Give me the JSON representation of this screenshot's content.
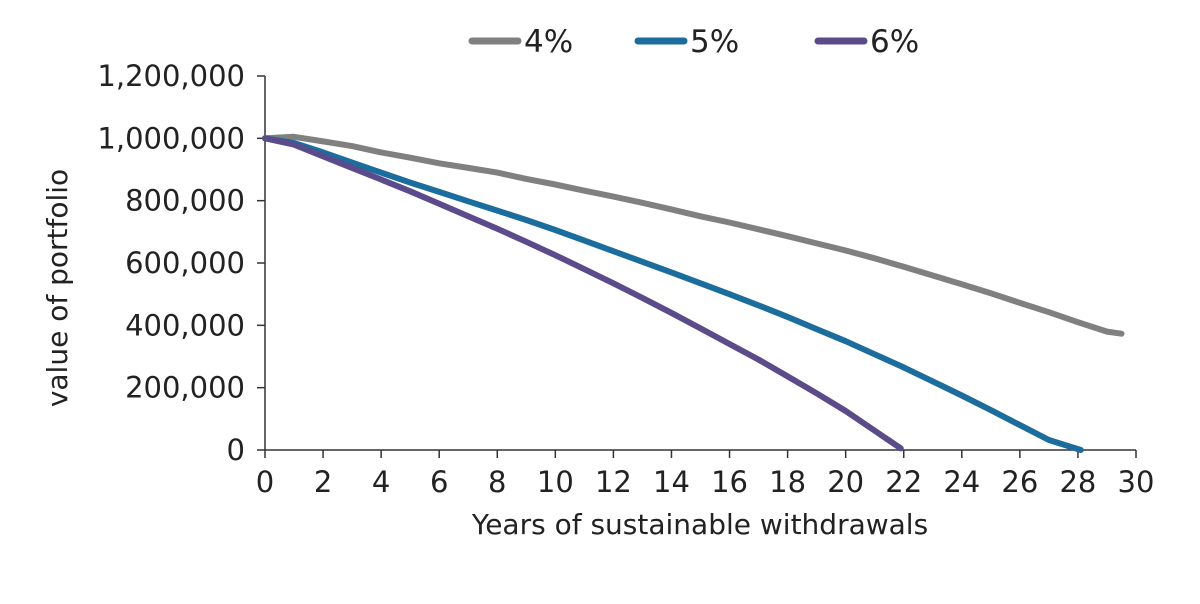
{
  "chart_data": {
    "type": "line",
    "xlabel": "Years of sustainable withdrawals",
    "ylabel": "value of portfolio",
    "xlim": [
      0,
      30
    ],
    "ylim": [
      0,
      1200000
    ],
    "x_ticks": [
      "0",
      "2",
      "4",
      "6",
      "8",
      "10",
      "12",
      "14",
      "16",
      "18",
      "20",
      "22",
      "24",
      "26",
      "28",
      "30"
    ],
    "y_ticks": [
      "1,200,000",
      "1,000,000",
      "800,000",
      "600,000",
      "400,000",
      "200,000",
      "0"
    ],
    "grid": false,
    "legend_position": "top",
    "series": [
      {
        "name": "4%",
        "color": "#808080",
        "x": [
          0,
          1,
          2,
          3,
          4,
          5,
          6,
          7,
          8,
          9,
          10,
          11,
          12,
          13,
          14,
          15,
          16,
          17,
          18,
          19,
          20,
          21,
          22,
          23,
          24,
          25,
          26,
          27,
          28,
          29,
          29.5
        ],
        "y": [
          1000000,
          1005000,
          990000,
          975000,
          955000,
          938000,
          920000,
          905000,
          890000,
          870000,
          852000,
          832000,
          813000,
          793000,
          772000,
          750000,
          730000,
          708000,
          686000,
          663000,
          640000,
          615000,
          588000,
          560000,
          532000,
          503000,
          472000,
          442000,
          410000,
          380000,
          373000
        ]
      },
      {
        "name": "5%",
        "color": "#1a6d9c",
        "x": [
          0,
          1,
          2,
          3,
          4,
          5,
          6,
          7,
          8,
          9,
          10,
          11,
          12,
          13,
          14,
          15,
          16,
          17,
          18,
          19,
          20,
          21,
          22,
          23,
          24,
          25,
          26,
          27,
          28.1
        ],
        "y": [
          1000000,
          985000,
          955000,
          922000,
          890000,
          858000,
          828000,
          798000,
          768000,
          738000,
          706000,
          672000,
          638000,
          604000,
          570000,
          535000,
          500000,
          464000,
          427000,
          388000,
          349000,
          307000,
          265000,
          220000,
          175000,
          128000,
          80000,
          32000,
          0
        ]
      },
      {
        "name": "6%",
        "color": "#5b4b8a",
        "x": [
          0,
          1,
          2,
          3,
          4,
          5,
          6,
          7,
          8,
          9,
          10,
          11,
          12,
          13,
          14,
          15,
          16,
          17,
          18,
          19,
          20,
          21,
          21.9
        ],
        "y": [
          1000000,
          980000,
          942000,
          905000,
          868000,
          830000,
          790000,
          750000,
          710000,
          668000,
          625000,
          580000,
          535000,
          488000,
          440000,
          390000,
          340000,
          290000,
          236000,
          182000,
          125000,
          62000,
          5000
        ]
      }
    ]
  }
}
